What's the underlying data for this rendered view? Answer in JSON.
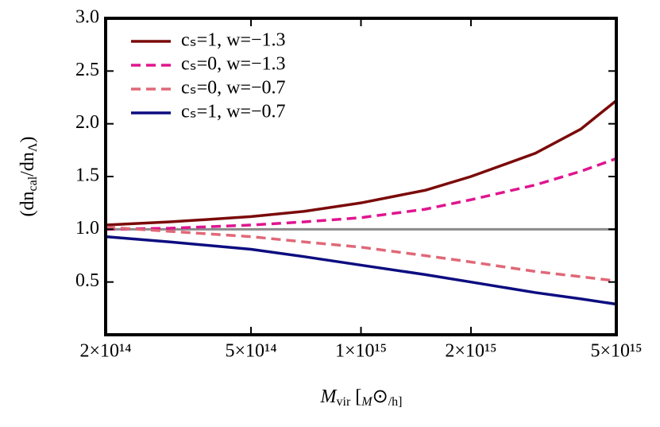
{
  "chart_data": {
    "type": "line",
    "xlabel_parts": [
      "M",
      "vir",
      " [",
      "M",
      "⊙",
      "/h]"
    ],
    "ylabel_parts": [
      "(dn",
      "cal",
      "/dn",
      "Λ",
      ")"
    ],
    "x": [
      200000000000000.0,
      300000000000000.0,
      500000000000000.0,
      700000000000000.0,
      1000000000000000.0,
      1500000000000000.0,
      2000000000000000.0,
      3000000000000000.0,
      4000000000000000.0,
      5000000000000000.0
    ],
    "series": [
      {
        "name": "cₛ=1, w=−1.3",
        "color": "#7b0a0a",
        "dash": false,
        "values": [
          1.04,
          1.07,
          1.12,
          1.17,
          1.25,
          1.37,
          1.5,
          1.72,
          1.95,
          2.22
        ]
      },
      {
        "name": "cₛ=0, w=−1.3",
        "color": "#e0158f",
        "dash": true,
        "values": [
          1.0,
          1.01,
          1.04,
          1.07,
          1.11,
          1.19,
          1.28,
          1.42,
          1.55,
          1.67
        ]
      },
      {
        "name": "cₛ=0, w=−0.7",
        "color": "#e06878",
        "dash": true,
        "values": [
          1.02,
          0.98,
          0.93,
          0.88,
          0.83,
          0.75,
          0.69,
          0.6,
          0.55,
          0.51
        ]
      },
      {
        "name": "cₛ=1, w=−0.7",
        "color": "#0d0d80",
        "dash": false,
        "values": [
          0.93,
          0.88,
          0.81,
          0.74,
          0.66,
          0.57,
          0.5,
          0.4,
          0.34,
          0.29
        ]
      }
    ],
    "hline": 1.0,
    "hline_color": "#8a8a8a",
    "xlim": [
      200000000000000.0,
      5000000000000000.0
    ],
    "xlog": true,
    "xticks": [
      {
        "value": 200000000000000.0,
        "label": "2×10¹⁴"
      },
      {
        "value": 500000000000000.0,
        "label": "5×10¹⁴"
      },
      {
        "value": 1000000000000000.0,
        "label": "1×10¹⁵"
      },
      {
        "value": 2000000000000000.0,
        "label": "2×10¹⁵"
      },
      {
        "value": 5000000000000000.0,
        "label": "5×10¹⁵"
      }
    ],
    "ylim": [
      0,
      3.0
    ],
    "yticks": [
      {
        "value": 0.5,
        "label": "0.5"
      },
      {
        "value": 1.0,
        "label": "1.0"
      },
      {
        "value": 1.5,
        "label": "1.5"
      },
      {
        "value": 2.0,
        "label": "2.0"
      },
      {
        "value": 2.5,
        "label": "2.5"
      },
      {
        "value": 3.0,
        "label": "3.0"
      }
    ],
    "legend": "upper-left"
  }
}
